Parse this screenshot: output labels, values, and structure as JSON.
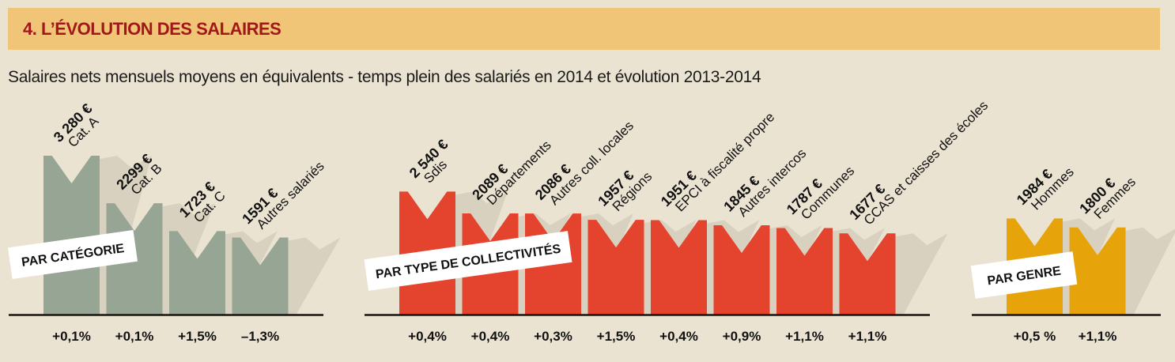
{
  "header": {
    "title": "4. L’ÉVOLUTION DES SALAIRES",
    "subtitle": "Salaires nets mensuels moyens en équivalents - temps plein des salariés en 2014 et évolution 2013-2014"
  },
  "colors": {
    "background": "#ebe3d2",
    "banner": "#f0c577",
    "title": "#a3161a",
    "shadow": "#d9d1c0",
    "baseline": "#1a1410"
  },
  "chart_data": [
    {
      "type": "bar",
      "title": "PAR CATÉGORIE",
      "color": "#97a594",
      "categories": [
        "Cat. A",
        "Cat. B",
        "Cat. C",
        "Autres salariés"
      ],
      "values": [
        3280,
        2299,
        1723,
        1591
      ],
      "value_labels": [
        "3 280 €",
        "2299 €",
        "1723 €",
        "1591 €"
      ],
      "evolution": [
        "+0,1%",
        "+0,1%",
        "+1,5%",
        "–1,3%"
      ],
      "unit": "€",
      "ylim": [
        0,
        3280
      ]
    },
    {
      "type": "bar",
      "title": "PAR TYPE DE COLLECTIVITÉS",
      "color": "#e4432d",
      "categories": [
        "Sdis",
        "Départements",
        "Autres coll. locales",
        "Régions",
        "EPCI à fiscalité propre",
        "Autres intercos",
        "Communes",
        "CCAS et caisses des écoles"
      ],
      "values": [
        2540,
        2089,
        2086,
        1957,
        1951,
        1845,
        1787,
        1677
      ],
      "value_labels": [
        "2 540 €",
        "2089 €",
        "2086 €",
        "1957 €",
        "1951 €",
        "1845 €",
        "1787 €",
        "1677 €"
      ],
      "evolution": [
        "+0,4%",
        "+0,4%",
        "+0,3%",
        "+1,5%",
        "+0,4%",
        "+0,9%",
        "+1,1%",
        "+1,1%"
      ],
      "unit": "€",
      "ylim": [
        0,
        3280
      ]
    },
    {
      "type": "bar",
      "title": "PAR GENRE",
      "color": "#e6a40a",
      "categories": [
        "Hommes",
        "Femmes"
      ],
      "values": [
        1984,
        1800
      ],
      "value_labels": [
        "1984 €",
        "1800 €"
      ],
      "evolution": [
        "+0,5 %",
        "+1,1%"
      ],
      "unit": "€",
      "ylim": [
        0,
        3280
      ]
    }
  ]
}
